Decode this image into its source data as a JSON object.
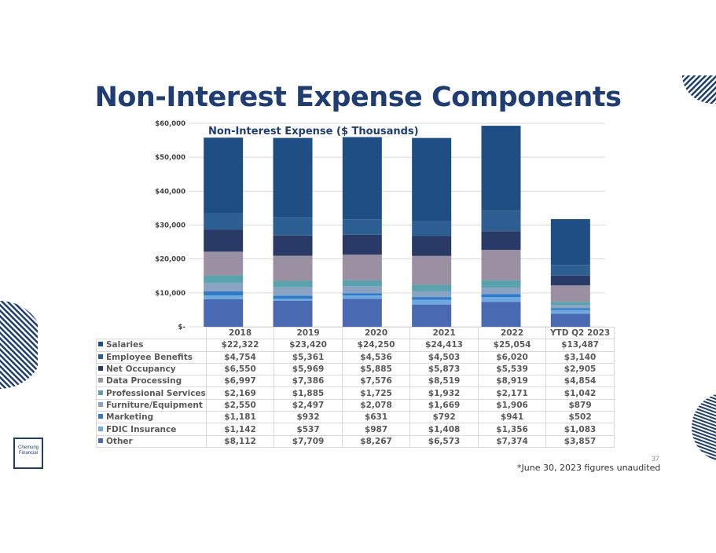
{
  "slide": {
    "title": "Non-Interest Expense Components",
    "page_number": "37",
    "footnote": "*June 30, 2023 figures unaudited",
    "logo_line1": "Chemung",
    "logo_line2": "Financial"
  },
  "chart_data": {
    "type": "bar",
    "stacked": true,
    "title": "Non-Interest Expense ($ Thousands)",
    "categories": [
      "2018",
      "2019",
      "2020",
      "2021",
      "2022",
      "YTD Q2 2023"
    ],
    "ylim": [
      0,
      60000
    ],
    "yticks": [
      0,
      10000,
      20000,
      30000,
      40000,
      50000,
      60000
    ],
    "ytick_labels": [
      "$-",
      "$10,000",
      "$20,000",
      "$30,000",
      "$40,000",
      "$50,000",
      "$60,000"
    ],
    "grid": true,
    "series": [
      {
        "name": "Salaries",
        "color": "#1f4e84",
        "values": [
          22322,
          23420,
          24250,
          24413,
          25054,
          13487
        ]
      },
      {
        "name": "Employee Benefits",
        "color": "#2d5f93",
        "values": [
          4754,
          5361,
          4536,
          4503,
          6020,
          3140
        ]
      },
      {
        "name": "Net Occupancy",
        "color": "#293a66",
        "values": [
          6550,
          5969,
          5885,
          5873,
          5539,
          2905
        ]
      },
      {
        "name": "Data Processing",
        "color": "#9b8fa2",
        "values": [
          6997,
          7386,
          7576,
          8519,
          8919,
          4854
        ]
      },
      {
        "name": "Professional Services",
        "color": "#5aa2ad",
        "values": [
          2169,
          1885,
          1725,
          1932,
          2171,
          1042
        ]
      },
      {
        "name": "Furniture/Equipment",
        "color": "#8ba3c3",
        "values": [
          2550,
          2497,
          2078,
          1669,
          1906,
          879
        ]
      },
      {
        "name": "Marketing",
        "color": "#2f79c9",
        "values": [
          1181,
          932,
          631,
          792,
          941,
          502
        ]
      },
      {
        "name": "FDIC Insurance",
        "color": "#6ea9e0",
        "values": [
          1142,
          537,
          987,
          1408,
          1356,
          1083
        ]
      },
      {
        "name": "Other",
        "color": "#4a69b3",
        "values": [
          8112,
          7709,
          8267,
          6573,
          7374,
          3857
        ]
      }
    ],
    "table": {
      "rows": [
        {
          "label": "Salaries",
          "cells": [
            "$22,322",
            "$23,420",
            "$24,250",
            "$24,413",
            "$25,054",
            "$13,487"
          ]
        },
        {
          "label": "Employee Benefits",
          "cells": [
            "$4,754",
            "$5,361",
            "$4,536",
            "$4,503",
            "$6,020",
            "$3,140"
          ]
        },
        {
          "label": "Net Occupancy",
          "cells": [
            "$6,550",
            "$5,969",
            "$5,885",
            "$5,873",
            "$5,539",
            "$2,905"
          ]
        },
        {
          "label": "Data Processing",
          "cells": [
            "$6,997",
            "$7,386",
            "$7,576",
            "$8,519",
            "$8,919",
            "$4,854"
          ]
        },
        {
          "label": "Professional Services",
          "cells": [
            "$2,169",
            "$1,885",
            "$1,725",
            "$1,932",
            "$2,171",
            "$1,042"
          ]
        },
        {
          "label": "Furniture/Equipment",
          "cells": [
            "$2,550",
            "$2,497",
            "$2,078",
            "$1,669",
            "$1,906",
            "$879"
          ]
        },
        {
          "label": "Marketing",
          "cells": [
            "$1,181",
            "$932",
            "$631",
            "$792",
            "$941",
            "$502"
          ]
        },
        {
          "label": "FDIC Insurance",
          "cells": [
            "$1,142",
            "$537",
            "$987",
            "$1,408",
            "$1,356",
            "$1,083"
          ]
        },
        {
          "label": "Other",
          "cells": [
            "$8,112",
            "$7,709",
            "$8,267",
            "$6,573",
            "$7,374",
            "$3,857"
          ]
        }
      ]
    }
  }
}
